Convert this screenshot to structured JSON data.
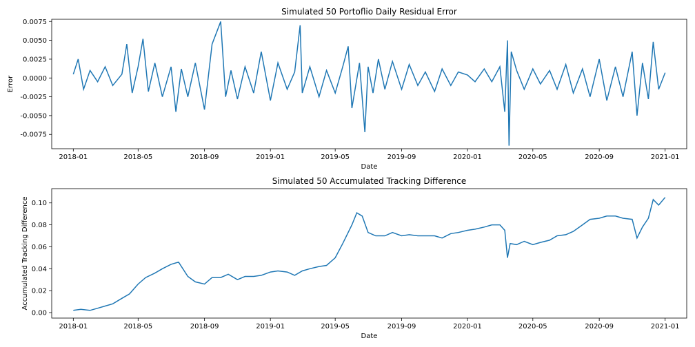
{
  "chart_data": [
    {
      "type": "line",
      "title": "Simulated 50 Portoflio Daily Residual Error",
      "xlabel": "Date",
      "ylabel": "Error",
      "x_tick_labels": [
        "2018-01",
        "2018-05",
        "2018-09",
        "2019-01",
        "2019-05",
        "2019-09",
        "2020-01",
        "2020-05",
        "2020-09",
        "2021-01"
      ],
      "y_tick_labels": [
        "-0.0075",
        "-0.0050",
        "-0.0025",
        "0.0000",
        "0.0025",
        "0.0050",
        "0.0075"
      ],
      "xlim": [
        "2017-11-22",
        "2021-02-10"
      ],
      "ylim": [
        -0.0094,
        0.0078
      ],
      "grid": false,
      "series": [
        {
          "color": "#1f77b4",
          "x": [
            "2018-01-01",
            "2018-01-10",
            "2018-01-20",
            "2018-02-01",
            "2018-02-15",
            "2018-03-01",
            "2018-03-15",
            "2018-04-01",
            "2018-04-10",
            "2018-04-20",
            "2018-05-01",
            "2018-05-10",
            "2018-05-20",
            "2018-06-01",
            "2018-06-15",
            "2018-07-01",
            "2018-07-10",
            "2018-07-20",
            "2018-08-01",
            "2018-08-15",
            "2018-09-01",
            "2018-09-15",
            "2018-10-01",
            "2018-10-10",
            "2018-10-20",
            "2018-11-01",
            "2018-11-15",
            "2018-12-01",
            "2018-12-15",
            "2019-01-01",
            "2019-01-15",
            "2019-02-01",
            "2019-02-15",
            "2019-02-25",
            "2019-03-01",
            "2019-03-15",
            "2019-04-01",
            "2019-04-15",
            "2019-05-01",
            "2019-05-15",
            "2019-05-25",
            "2019-06-01",
            "2019-06-15",
            "2019-06-25",
            "2019-07-01",
            "2019-07-10",
            "2019-07-20",
            "2019-08-01",
            "2019-08-15",
            "2019-09-01",
            "2019-09-15",
            "2019-10-01",
            "2019-10-15",
            "2019-11-01",
            "2019-11-15",
            "2019-12-01",
            "2019-12-15",
            "2020-01-01",
            "2020-01-15",
            "2020-02-01",
            "2020-02-15",
            "2020-03-01",
            "2020-03-10",
            "2020-03-15",
            "2020-03-18",
            "2020-03-22",
            "2020-04-01",
            "2020-04-15",
            "2020-05-01",
            "2020-05-15",
            "2020-06-01",
            "2020-06-15",
            "2020-07-01",
            "2020-07-15",
            "2020-08-01",
            "2020-08-15",
            "2020-09-01",
            "2020-09-15",
            "2020-10-01",
            "2020-10-15",
            "2020-11-01",
            "2020-11-10",
            "2020-11-20",
            "2020-12-01",
            "2020-12-10",
            "2020-12-20",
            "2021-01-01"
          ],
          "y": [
            0.0005,
            0.0025,
            -0.0015,
            0.001,
            -0.0005,
            0.0015,
            -0.001,
            0.0005,
            0.0045,
            -0.002,
            0.0015,
            0.0052,
            -0.0018,
            0.002,
            -0.0025,
            0.0015,
            -0.0045,
            0.0012,
            -0.0025,
            0.002,
            -0.0042,
            0.0045,
            0.0075,
            -0.0025,
            0.001,
            -0.0028,
            0.0015,
            -0.002,
            0.0035,
            -0.003,
            0.002,
            -0.0015,
            0.0008,
            0.007,
            -0.002,
            0.0015,
            -0.0025,
            0.001,
            -0.002,
            0.0015,
            0.0042,
            -0.004,
            0.002,
            -0.0072,
            0.0015,
            -0.002,
            0.0025,
            -0.0015,
            0.0022,
            -0.0015,
            0.0018,
            -0.001,
            0.0008,
            -0.0018,
            0.0012,
            -0.001,
            0.0008,
            0.0004,
            -0.0005,
            0.0012,
            -0.0005,
            0.0015,
            -0.0045,
            0.005,
            -0.009,
            0.0035,
            0.001,
            -0.0015,
            0.0012,
            -0.0008,
            0.001,
            -0.0015,
            0.0018,
            -0.002,
            0.0012,
            -0.0025,
            0.0025,
            -0.003,
            0.0015,
            -0.0025,
            0.0035,
            -0.005,
            0.002,
            -0.0028,
            0.0048,
            -0.0015,
            0.0007
          ]
        }
      ]
    },
    {
      "type": "line",
      "title": "Simulated 50 Accumulated Tracking Difference",
      "xlabel": "Date",
      "ylabel": "Accumulated Tracking Difference",
      "x_tick_labels": [
        "2018-01",
        "2018-05",
        "2018-09",
        "2019-01",
        "2019-05",
        "2019-09",
        "2020-01",
        "2020-05",
        "2020-09",
        "2021-01"
      ],
      "y_tick_labels": [
        "0.00",
        "0.02",
        "0.04",
        "0.06",
        "0.08",
        "0.10"
      ],
      "xlim": [
        "2017-11-22",
        "2021-02-10"
      ],
      "ylim": [
        -0.005,
        0.113
      ],
      "grid": false,
      "series": [
        {
          "color": "#1f77b4",
          "x": [
            "2018-01-01",
            "2018-01-15",
            "2018-02-01",
            "2018-02-15",
            "2018-03-01",
            "2018-03-15",
            "2018-04-01",
            "2018-04-15",
            "2018-05-01",
            "2018-05-15",
            "2018-06-01",
            "2018-06-15",
            "2018-07-01",
            "2018-07-15",
            "2018-08-01",
            "2018-08-15",
            "2018-09-01",
            "2018-09-15",
            "2018-10-01",
            "2018-10-15",
            "2018-11-01",
            "2018-11-15",
            "2018-12-01",
            "2018-12-15",
            "2019-01-01",
            "2019-01-15",
            "2019-02-01",
            "2019-02-15",
            "2019-03-01",
            "2019-03-15",
            "2019-04-01",
            "2019-04-15",
            "2019-05-01",
            "2019-05-15",
            "2019-06-01",
            "2019-06-10",
            "2019-06-20",
            "2019-07-01",
            "2019-07-15",
            "2019-08-01",
            "2019-08-15",
            "2019-09-01",
            "2019-09-15",
            "2019-10-01",
            "2019-10-15",
            "2019-11-01",
            "2019-11-15",
            "2019-12-01",
            "2019-12-15",
            "2020-01-01",
            "2020-01-15",
            "2020-02-01",
            "2020-02-15",
            "2020-03-01",
            "2020-03-10",
            "2020-03-15",
            "2020-03-20",
            "2020-04-01",
            "2020-04-15",
            "2020-05-01",
            "2020-05-15",
            "2020-06-01",
            "2020-06-15",
            "2020-07-01",
            "2020-07-15",
            "2020-08-01",
            "2020-08-15",
            "2020-09-01",
            "2020-09-15",
            "2020-10-01",
            "2020-10-15",
            "2020-11-01",
            "2020-11-10",
            "2020-11-20",
            "2020-12-01",
            "2020-12-10",
            "2020-12-20",
            "2021-01-01"
          ],
          "y": [
            0.002,
            0.003,
            0.002,
            0.004,
            0.006,
            0.008,
            0.013,
            0.017,
            0.026,
            0.032,
            0.036,
            0.04,
            0.044,
            0.046,
            0.033,
            0.028,
            0.026,
            0.032,
            0.032,
            0.035,
            0.03,
            0.033,
            0.033,
            0.034,
            0.037,
            0.038,
            0.037,
            0.034,
            0.038,
            0.04,
            0.042,
            0.043,
            0.05,
            0.063,
            0.08,
            0.091,
            0.088,
            0.073,
            0.07,
            0.07,
            0.073,
            0.07,
            0.071,
            0.07,
            0.07,
            0.07,
            0.068,
            0.072,
            0.073,
            0.075,
            0.076,
            0.078,
            0.08,
            0.08,
            0.075,
            0.05,
            0.063,
            0.062,
            0.065,
            0.062,
            0.064,
            0.066,
            0.07,
            0.071,
            0.074,
            0.08,
            0.085,
            0.086,
            0.088,
            0.088,
            0.086,
            0.085,
            0.068,
            0.078,
            0.086,
            0.103,
            0.098,
            0.105
          ]
        }
      ]
    }
  ]
}
